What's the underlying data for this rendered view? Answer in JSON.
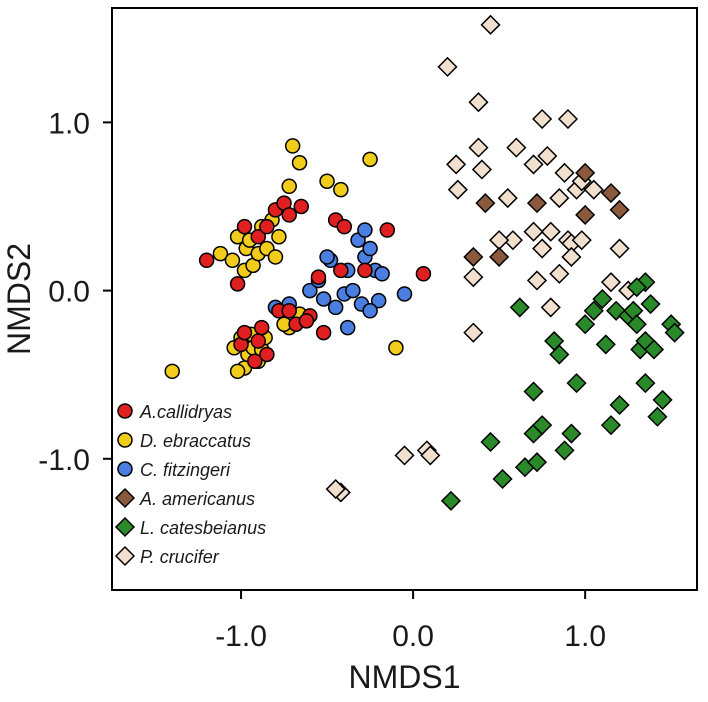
{
  "chart_data": {
    "type": "scatter",
    "title": "",
    "xlabel": "NMDS1",
    "ylabel": "NMDS2",
    "xlim": [
      -1.75,
      1.65
    ],
    "ylim": [
      -1.78,
      1.68
    ],
    "grid": false,
    "legend_position": "bottom-left",
    "x_ticks": [
      {
        "value": -1.0,
        "label": "-1.0"
      },
      {
        "value": 0.0,
        "label": "0.0"
      },
      {
        "value": 1.0,
        "label": "1.0"
      }
    ],
    "y_ticks": [
      {
        "value": 1.0,
        "label": "1.0"
      },
      {
        "value": 0.0,
        "label": "0.0"
      },
      {
        "value": -1.0,
        "label": "-1.0"
      }
    ],
    "series": [
      {
        "name": "A.callidryas",
        "marker": "circle",
        "color": "#e02020",
        "points": [
          [
            -1.2,
            0.18
          ],
          [
            -1.02,
            0.04
          ],
          [
            -0.98,
            0.38
          ],
          [
            -0.9,
            0.32
          ],
          [
            -0.85,
            0.38
          ],
          [
            -0.8,
            0.48
          ],
          [
            -0.75,
            0.52
          ],
          [
            -0.72,
            0.45
          ],
          [
            -0.65,
            0.5
          ],
          [
            -0.45,
            0.42
          ],
          [
            -0.4,
            0.38
          ],
          [
            -0.55,
            0.08
          ],
          [
            -0.42,
            0.12
          ],
          [
            -0.6,
            -0.15
          ],
          [
            -0.78,
            -0.12
          ],
          [
            -0.72,
            -0.12
          ],
          [
            -0.68,
            -0.2
          ],
          [
            -0.62,
            -0.18
          ],
          [
            -0.52,
            -0.25
          ],
          [
            -0.85,
            -0.38
          ],
          [
            -0.9,
            -0.3
          ],
          [
            -1.0,
            -0.32
          ],
          [
            -0.92,
            -0.42
          ],
          [
            -0.98,
            -0.25
          ],
          [
            -0.28,
            0.12
          ],
          [
            -0.15,
            0.36
          ],
          [
            0.06,
            0.1
          ],
          [
            -0.88,
            -0.22
          ]
        ]
      },
      {
        "name": "D. ebraccatus",
        "marker": "circle",
        "color": "#f2cc1a",
        "points": [
          [
            -1.4,
            -0.48
          ],
          [
            -1.12,
            0.22
          ],
          [
            -1.05,
            0.18
          ],
          [
            -1.02,
            0.32
          ],
          [
            -0.98,
            0.12
          ],
          [
            -0.97,
            0.25
          ],
          [
            -0.95,
            0.3
          ],
          [
            -0.93,
            0.15
          ],
          [
            -0.9,
            0.22
          ],
          [
            -0.88,
            0.38
          ],
          [
            -0.85,
            0.25
          ],
          [
            -0.8,
            0.2
          ],
          [
            -0.78,
            0.32
          ],
          [
            -0.82,
            0.42
          ],
          [
            -0.72,
            0.62
          ],
          [
            -0.7,
            0.86
          ],
          [
            -0.66,
            0.76
          ],
          [
            -0.5,
            0.65
          ],
          [
            -0.42,
            0.6
          ],
          [
            -0.25,
            0.78
          ],
          [
            -0.98,
            -0.3
          ],
          [
            -0.96,
            -0.38
          ],
          [
            -0.93,
            -0.34
          ],
          [
            -0.9,
            -0.42
          ],
          [
            -0.88,
            -0.35
          ],
          [
            -1.0,
            -0.28
          ],
          [
            -0.98,
            -0.46
          ],
          [
            -0.86,
            -0.28
          ],
          [
            -0.94,
            -0.26
          ],
          [
            -1.02,
            -0.48
          ],
          [
            -0.72,
            -0.22
          ],
          [
            -0.7,
            -0.16
          ],
          [
            -0.75,
            -0.2
          ],
          [
            -0.66,
            -0.14
          ],
          [
            -0.1,
            -0.34
          ],
          [
            -1.04,
            -0.34
          ]
        ]
      },
      {
        "name": "C. fitzingeri",
        "marker": "circle",
        "color": "#4a7ee0",
        "points": [
          [
            -0.6,
            0.0
          ],
          [
            -0.52,
            -0.05
          ],
          [
            -0.48,
            0.18
          ],
          [
            -0.45,
            -0.1
          ],
          [
            -0.4,
            -0.02
          ],
          [
            -0.38,
            0.12
          ],
          [
            -0.35,
            0.0
          ],
          [
            -0.3,
            -0.08
          ],
          [
            -0.28,
            0.2
          ],
          [
            -0.25,
            0.25
          ],
          [
            -0.22,
            0.12
          ],
          [
            -0.2,
            -0.06
          ],
          [
            -0.18,
            0.1
          ],
          [
            -0.25,
            -0.12
          ],
          [
            -0.38,
            -0.22
          ],
          [
            -0.5,
            0.2
          ],
          [
            -0.32,
            0.3
          ],
          [
            -0.28,
            0.36
          ],
          [
            -0.05,
            -0.02
          ],
          [
            -0.72,
            -0.08
          ],
          [
            -0.8,
            -0.1
          ],
          [
            -0.55,
            0.06
          ]
        ]
      },
      {
        "name": "A. americanus",
        "marker": "diamond",
        "color": "#8b5a3c",
        "points": [
          [
            0.42,
            0.52
          ],
          [
            0.35,
            0.2
          ],
          [
            0.5,
            0.2
          ],
          [
            0.72,
            0.52
          ],
          [
            1.0,
            0.7
          ],
          [
            1.0,
            0.45
          ],
          [
            1.15,
            0.58
          ],
          [
            1.2,
            0.48
          ]
        ]
      },
      {
        "name": "L. catesbeianus",
        "marker": "diamond",
        "color": "#2a8a2a",
        "points": [
          [
            0.22,
            -1.25
          ],
          [
            0.45,
            -0.9
          ],
          [
            0.52,
            -1.12
          ],
          [
            0.62,
            -0.1
          ],
          [
            0.65,
            -1.05
          ],
          [
            0.7,
            -0.6
          ],
          [
            0.7,
            -0.85
          ],
          [
            0.72,
            -1.02
          ],
          [
            0.75,
            -0.8
          ],
          [
            0.82,
            -0.3
          ],
          [
            0.85,
            -0.38
          ],
          [
            0.88,
            -0.95
          ],
          [
            0.92,
            -0.85
          ],
          [
            0.95,
            -0.55
          ],
          [
            1.0,
            -0.2
          ],
          [
            1.05,
            -0.12
          ],
          [
            1.1,
            -0.05
          ],
          [
            1.12,
            -0.32
          ],
          [
            1.15,
            -0.8
          ],
          [
            1.18,
            -0.12
          ],
          [
            1.2,
            -0.68
          ],
          [
            1.25,
            -0.15
          ],
          [
            1.28,
            -0.12
          ],
          [
            1.3,
            -0.2
          ],
          [
            1.32,
            -0.35
          ],
          [
            1.35,
            -0.3
          ],
          [
            1.35,
            -0.55
          ],
          [
            1.38,
            -0.08
          ],
          [
            1.4,
            -0.35
          ],
          [
            1.42,
            -0.75
          ],
          [
            1.45,
            -0.65
          ],
          [
            1.5,
            -0.2
          ],
          [
            1.52,
            -0.25
          ],
          [
            1.35,
            0.05
          ],
          [
            1.3,
            0.02
          ]
        ]
      },
      {
        "name": "P. crucifer",
        "marker": "diamond",
        "color": "#f2e0cf",
        "points": [
          [
            0.45,
            1.58
          ],
          [
            0.2,
            1.33
          ],
          [
            0.38,
            1.12
          ],
          [
            0.38,
            0.85
          ],
          [
            0.4,
            0.72
          ],
          [
            0.25,
            0.75
          ],
          [
            0.26,
            0.6
          ],
          [
            0.55,
            0.55
          ],
          [
            0.6,
            0.85
          ],
          [
            0.7,
            0.75
          ],
          [
            0.75,
            1.02
          ],
          [
            0.78,
            0.8
          ],
          [
            0.9,
            1.02
          ],
          [
            0.88,
            0.7
          ],
          [
            0.85,
            0.55
          ],
          [
            0.8,
            0.35
          ],
          [
            0.9,
            0.3
          ],
          [
            0.92,
            0.28
          ],
          [
            0.95,
            0.6
          ],
          [
            0.98,
            0.65
          ],
          [
            1.05,
            0.6
          ],
          [
            0.7,
            0.35
          ],
          [
            0.75,
            0.25
          ],
          [
            0.72,
            0.06
          ],
          [
            0.85,
            0.1
          ],
          [
            0.92,
            0.2
          ],
          [
            0.98,
            0.3
          ],
          [
            0.58,
            0.3
          ],
          [
            0.5,
            0.3
          ],
          [
            0.35,
            0.08
          ],
          [
            0.8,
            -0.1
          ],
          [
            0.35,
            -0.25
          ],
          [
            1.2,
            0.25
          ],
          [
            1.15,
            0.05
          ],
          [
            1.25,
            0.0
          ],
          [
            0.08,
            -0.95
          ],
          [
            0.1,
            -0.98
          ],
          [
            -0.05,
            -0.98
          ],
          [
            -0.42,
            -1.2
          ],
          [
            -0.45,
            -1.18
          ]
        ]
      }
    ]
  }
}
